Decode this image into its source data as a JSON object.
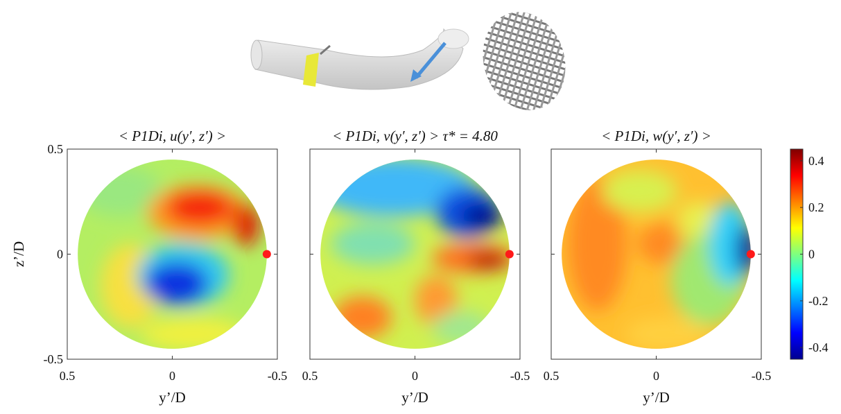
{
  "chart_data": [
    {
      "type": "contour",
      "title": "< P1Di, u(y′, z′) >",
      "xlabel": "y’/D",
      "ylabel": "z’/D",
      "xlim": [
        0.5,
        -0.5
      ],
      "ylim": [
        -0.5,
        0.5
      ],
      "xticks": [
        0.5,
        0,
        -0.5
      ],
      "yticks": [
        0.5,
        0,
        -0.5
      ],
      "probe": {
        "x": -0.45,
        "y": 0,
        "color": "#ff1a1a"
      }
    },
    {
      "type": "contour",
      "title": "< P1Di, v(y′, z′) > τ* = 4.80",
      "xlabel": "y’/D",
      "xlim": [
        0.5,
        -0.5
      ],
      "ylim": [
        -0.5,
        0.5
      ],
      "xticks": [
        0.5,
        0,
        -0.5
      ],
      "probe": {
        "x": -0.45,
        "y": 0,
        "color": "#ff1a1a"
      }
    },
    {
      "type": "contour",
      "title": "< P1Di, w(y′, z′) >",
      "xlabel": "y’/D",
      "xlim": [
        0.5,
        -0.5
      ],
      "ylim": [
        -0.5,
        0.5
      ],
      "xticks": [
        0.5,
        0,
        -0.5
      ],
      "probe": {
        "x": -0.45,
        "y": 0,
        "color": "#ff1a1a"
      }
    }
  ],
  "colorbar": {
    "clim": [
      -0.45,
      0.45
    ],
    "ticks": [
      0.4,
      0.2,
      0,
      -0.2,
      -0.4
    ],
    "colormap": "jet"
  }
}
